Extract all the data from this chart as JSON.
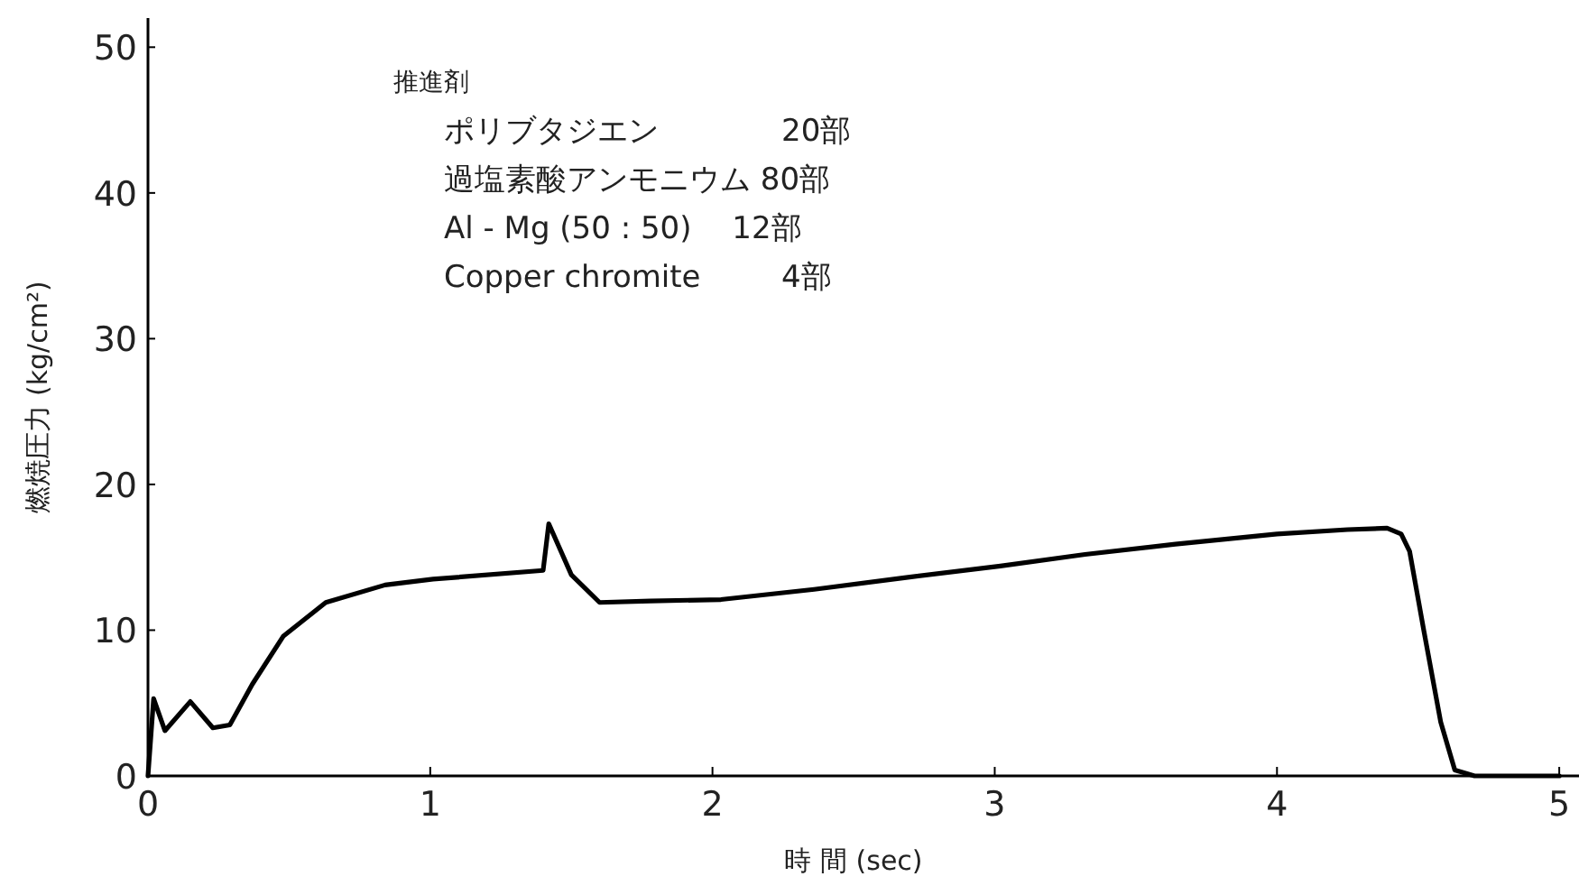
{
  "chart_data": {
    "type": "line",
    "xlabel": "時 間 (sec)",
    "ylabel": "燃焼圧力 (kg/cm²)",
    "annotations": [
      "推進剤",
      "ポリブタジエン　　　　20部",
      "過塩素酸アンモニウム 80部",
      "Al - Mg (50 : 50)　 12部",
      "Copper chromite　　  4部"
    ],
    "xlim": [
      0,
      5.07
    ],
    "ylim": [
      0,
      52
    ],
    "xticks": [
      0,
      1,
      2,
      3,
      4,
      5
    ],
    "yticks": [
      0,
      10,
      20,
      30,
      40,
      50
    ],
    "grid": false,
    "marker": "none",
    "line_style": "solid",
    "series": [
      {
        "color": "#000000",
        "x": [
          0,
          0.02,
          0.06,
          0.15,
          0.23,
          0.29,
          0.37,
          0.48,
          0.63,
          0.84,
          1.01,
          1.4,
          1.42,
          1.5,
          1.6,
          1.78,
          2.03,
          2.36,
          2.68,
          3.02,
          3.32,
          3.64,
          4.0,
          4.25,
          4.39,
          4.44,
          4.47,
          4.52,
          4.58,
          4.63,
          4.7,
          5.0
        ],
        "values": [
          0,
          5.3,
          3.1,
          5.1,
          3.3,
          3.5,
          6.3,
          9.6,
          11.9,
          13.1,
          13.5,
          14.1,
          17.3,
          13.8,
          11.9,
          12.0,
          12.1,
          12.8,
          13.6,
          14.4,
          15.2,
          15.9,
          16.6,
          16.9,
          17.0,
          16.6,
          15.4,
          10.0,
          3.7,
          0.4,
          0,
          0
        ]
      }
    ]
  }
}
